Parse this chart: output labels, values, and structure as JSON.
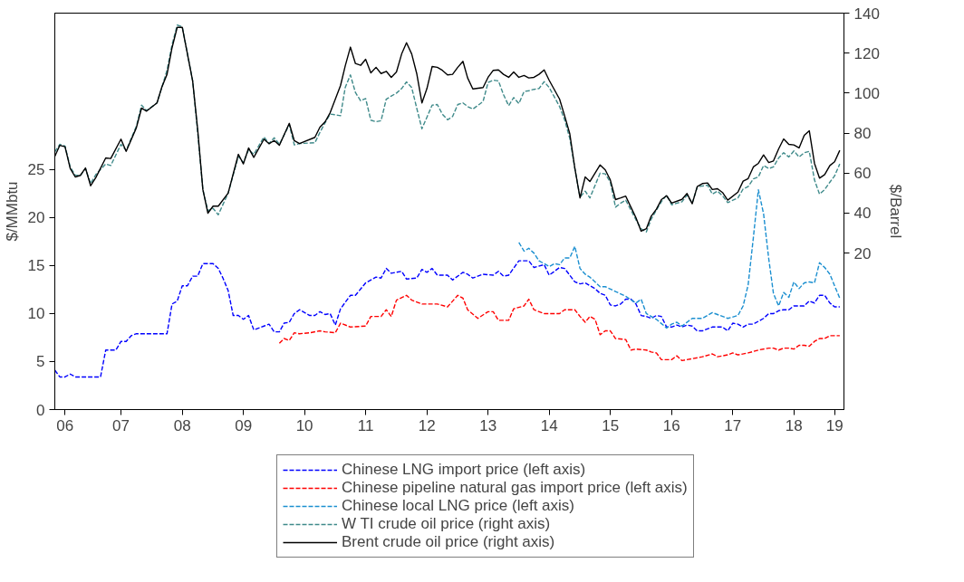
{
  "chart_data": {
    "type": "line",
    "ylabel": "$/MMbtu",
    "y2label": "$/Barrel",
    "xlim": [
      "2006-06-01",
      "2019-04-26"
    ],
    "ylim": [
      0,
      41.3
    ],
    "y2lim": [
      -58.2,
      140
    ],
    "xticks": [
      {
        "value": "2006-08",
        "label": "06"
      },
      {
        "value": "2007-07",
        "label": "07"
      },
      {
        "value": "2008-07",
        "label": "08"
      },
      {
        "value": "2009-07",
        "label": "09"
      },
      {
        "value": "2010-07",
        "label": "10"
      },
      {
        "value": "2011-07",
        "label": "11"
      },
      {
        "value": "2012-07",
        "label": "12"
      },
      {
        "value": "2013-07",
        "label": "13"
      },
      {
        "value": "2014-07",
        "label": "14"
      },
      {
        "value": "2015-07",
        "label": "15"
      },
      {
        "value": "2016-07",
        "label": "16"
      },
      {
        "value": "2017-07",
        "label": "17"
      },
      {
        "value": "2018-07",
        "label": "18"
      },
      {
        "value": "2019-03",
        "label": "19"
      }
    ],
    "yticks": [
      0,
      5,
      10,
      15,
      20,
      25
    ],
    "y2ticks": [
      20,
      40,
      60,
      80,
      100,
      120,
      140
    ],
    "grid": false,
    "legend": "bottom",
    "marker": "none",
    "series": [
      {
        "name": "Chinese LNG import price (left axis)",
        "color": "#0000ff",
        "line_style": "dashed",
        "axis": "y",
        "x": [
          "2006-06",
          "2006-07",
          "2006-08",
          "2006-09",
          "2006-10",
          "2007-03",
          "2007-04",
          "2007-06",
          "2007-07",
          "2007-08",
          "2007-09",
          "2007-10",
          "2008-04",
          "2008-05",
          "2008-06",
          "2008-07",
          "2008-08",
          "2008-09",
          "2008-10",
          "2008-11",
          "2009-01",
          "2009-02",
          "2009-03",
          "2009-04",
          "2009-05",
          "2009-06",
          "2009-07",
          "2009-08",
          "2009-09",
          "2009-11",
          "2009-12",
          "2010-01",
          "2010-02",
          "2010-03",
          "2010-04",
          "2010-05",
          "2010-06",
          "2010-08",
          "2010-09",
          "2010-10",
          "2010-11",
          "2010-12",
          "2011-01",
          "2011-02",
          "2011-04",
          "2011-05",
          "2011-07",
          "2011-09",
          "2011-10",
          "2011-11",
          "2011-12",
          "2012-02",
          "2012-03",
          "2012-05",
          "2012-06",
          "2012-07",
          "2012-08",
          "2012-09",
          "2012-11",
          "2012-12",
          "2013-02",
          "2013-03",
          "2013-04",
          "2013-06",
          "2013-08",
          "2013-09",
          "2013-10",
          "2013-11",
          "2014-01",
          "2014-03",
          "2014-04",
          "2014-06",
          "2014-07",
          "2014-09",
          "2014-10",
          "2014-11",
          "2014-12",
          "2015-01",
          "2015-02",
          "2015-03",
          "2015-04",
          "2015-05",
          "2015-06",
          "2015-07",
          "2015-08",
          "2015-09",
          "2015-10",
          "2015-11",
          "2015-12",
          "2016-01",
          "2016-02",
          "2016-03",
          "2016-04",
          "2016-05",
          "2016-06",
          "2016-07",
          "2016-08",
          "2016-09",
          "2016-10",
          "2016-11",
          "2016-12",
          "2017-01",
          "2017-03",
          "2017-05",
          "2017-06",
          "2017-07",
          "2017-08",
          "2017-09",
          "2017-10",
          "2017-11",
          "2018-01",
          "2018-02",
          "2018-03",
          "2018-04",
          "2018-05",
          "2018-06",
          "2018-07",
          "2018-09",
          "2018-10",
          "2018-11",
          "2018-12",
          "2019-01",
          "2019-02",
          "2019-03",
          "2019-04"
        ],
        "values": [
          4.1,
          3.4,
          3.4,
          3.7,
          3.4,
          3.4,
          6.2,
          6.2,
          7.1,
          7.1,
          7.7,
          7.9,
          7.9,
          11,
          11.3,
          12.9,
          12.9,
          13.9,
          13.9,
          15.2,
          15.2,
          14.7,
          13.7,
          12.4,
          9.8,
          9.8,
          9.4,
          9.8,
          8.3,
          8.7,
          8.9,
          8.1,
          8.1,
          9,
          9.1,
          10,
          10.4,
          9.8,
          9.8,
          10.2,
          9.9,
          10,
          8.8,
          10.5,
          11.9,
          11.9,
          13.2,
          13.8,
          13.7,
          14.7,
          14.2,
          14.4,
          13.6,
          13.7,
          14.6,
          14.3,
          14.7,
          14,
          14,
          13.5,
          14.3,
          14.1,
          13.7,
          14.1,
          14,
          14.4,
          13.9,
          14,
          15.5,
          15.5,
          14.8,
          15.1,
          14,
          14.8,
          14.7,
          14,
          13.3,
          13.1,
          13.2,
          12.9,
          12.6,
          12.1,
          11.9,
          10.9,
          10.8,
          11,
          11.5,
          11.5,
          11,
          9.8,
          9.7,
          9.5,
          9.8,
          9.7,
          8.6,
          8.6,
          8.8,
          8.6,
          8.8,
          8.7,
          8.2,
          8.2,
          8.6,
          8.6,
          8.2,
          9,
          8.9,
          8.6,
          8.9,
          8.9,
          9.5,
          10,
          10,
          10.3,
          10.4,
          10.4,
          10.8,
          10.8,
          11.3,
          11.1,
          11.9,
          11.9,
          11.1,
          10.7,
          10.7
        ]
      },
      {
        "name": "Chinese pipeline natural gas import price (left axis)",
        "color": "#ff0000",
        "line_style": "dashed",
        "axis": "y",
        "x": [
          "2010-02",
          "2010-03",
          "2010-04",
          "2010-05",
          "2010-06",
          "2010-08",
          "2010-10",
          "2010-11",
          "2011-01",
          "2011-02",
          "2011-04",
          "2011-07",
          "2011-08",
          "2011-10",
          "2011-11",
          "2011-12",
          "2012-01",
          "2012-03",
          "2012-04",
          "2012-06",
          "2012-08",
          "2012-09",
          "2012-11",
          "2013-01",
          "2013-02",
          "2013-03",
          "2013-05",
          "2013-07",
          "2013-08",
          "2013-09",
          "2013-11",
          "2013-12",
          "2014-02",
          "2014-03",
          "2014-04",
          "2014-06",
          "2014-09",
          "2014-10",
          "2014-12",
          "2015-01",
          "2015-02",
          "2015-03",
          "2015-04",
          "2015-05",
          "2015-06",
          "2015-07",
          "2015-08",
          "2015-10",
          "2015-11",
          "2015-12",
          "2016-02",
          "2016-03",
          "2016-04",
          "2016-05",
          "2016-07",
          "2016-08",
          "2016-09",
          "2016-11",
          "2017-01",
          "2017-03",
          "2017-04",
          "2017-06",
          "2017-07",
          "2017-08",
          "2017-10",
          "2017-12",
          "2018-02",
          "2018-03",
          "2018-04",
          "2018-05",
          "2018-06",
          "2018-07",
          "2018-08",
          "2018-09",
          "2018-10",
          "2018-11",
          "2018-12",
          "2019-01",
          "2019-02",
          "2019-04"
        ],
        "values": [
          6.9,
          7.4,
          7.2,
          8,
          7.9,
          8,
          8.2,
          8.1,
          8,
          9,
          8.6,
          8.7,
          9.7,
          9.7,
          10.4,
          9.7,
          11.4,
          11.9,
          11.4,
          11,
          11,
          11,
          10.7,
          11.9,
          11.6,
          10.4,
          9.5,
          10.2,
          10.2,
          9.3,
          9.3,
          10.5,
          10.8,
          11.5,
          10.4,
          10,
          10,
          10.4,
          10.4,
          9.7,
          9.1,
          9.7,
          9.4,
          7.8,
          8.2,
          8.2,
          7.4,
          7.3,
          6.2,
          6.3,
          6.2,
          6,
          5.9,
          5.2,
          5.2,
          5.6,
          5.1,
          5.3,
          5.5,
          5.8,
          5.5,
          5.7,
          5.9,
          5.7,
          5.9,
          6.2,
          6.4,
          6.4,
          6.2,
          6.4,
          6.4,
          6.3,
          6.7,
          6.7,
          6.6,
          7.1,
          7.4,
          7.4,
          7.7,
          7.7
        ]
      },
      {
        "name": "Chinese local LNG price (left axis)",
        "color": "#1b8fd0",
        "line_style": "dashed",
        "axis": "y",
        "x": [
          "2014-01",
          "2014-02",
          "2014-03",
          "2014-04",
          "2014-05",
          "2014-07",
          "2014-08",
          "2014-09",
          "2014-10",
          "2014-11",
          "2014-12",
          "2015-01",
          "2015-02",
          "2015-03",
          "2015-05",
          "2015-06",
          "2015-08",
          "2015-10",
          "2015-12",
          "2016-01",
          "2016-02",
          "2016-04",
          "2016-06",
          "2016-07",
          "2016-08",
          "2016-09",
          "2016-11",
          "2017-01",
          "2017-03",
          "2017-04",
          "2017-06",
          "2017-08",
          "2017-09",
          "2017-10",
          "2017-11",
          "2017-12",
          "2018-01",
          "2018-02",
          "2018-03",
          "2018-04",
          "2018-05",
          "2018-06",
          "2018-07",
          "2018-08",
          "2018-09",
          "2018-10",
          "2018-11",
          "2018-12",
          "2019-01",
          "2019-02",
          "2019-03",
          "2019-04"
        ],
        "values": [
          17.4,
          16.5,
          16.8,
          16.3,
          15.5,
          14.9,
          15.2,
          15.1,
          15.8,
          15.8,
          17,
          14.7,
          14.1,
          13.8,
          12.8,
          12.8,
          12.3,
          11.8,
          11.1,
          11.5,
          10,
          9.4,
          8.5,
          8.9,
          9.1,
          8.7,
          9.5,
          9.5,
          10.1,
          9.9,
          9.5,
          9.8,
          10.8,
          13,
          17.9,
          22.9,
          20.4,
          15.7,
          12.1,
          10.8,
          12.2,
          11.7,
          13.3,
          12.6,
          13.2,
          13.3,
          13.2,
          15.3,
          14.8,
          14.1,
          12.9,
          11.6
        ]
      },
      {
        "name": "W TI crude oil price (right axis)",
        "color": "#3f8a8a",
        "line_style": "dashed",
        "axis": "y2",
        "x": [
          "2006-06",
          "2006-07",
          "2006-08",
          "2006-09",
          "2006-10",
          "2006-11",
          "2006-12",
          "2007-01",
          "2007-02",
          "2007-04",
          "2007-05",
          "2007-07",
          "2007-08",
          "2007-10",
          "2007-11",
          "2007-12",
          "2008-02",
          "2008-03",
          "2008-04",
          "2008-05",
          "2008-06",
          "2008-07",
          "2008-09",
          "2008-10",
          "2008-11",
          "2008-12",
          "2009-01",
          "2009-02",
          "2009-04",
          "2009-06",
          "2009-07",
          "2009-08",
          "2009-09",
          "2009-11",
          "2009-12",
          "2010-01",
          "2010-02",
          "2010-04",
          "2010-05",
          "2010-06",
          "2010-09",
          "2010-10",
          "2010-11",
          "2010-12",
          "2011-01",
          "2011-02",
          "2011-03",
          "2011-04",
          "2011-05",
          "2011-06",
          "2011-07",
          "2011-08",
          "2011-09",
          "2011-10",
          "2011-11",
          "2011-12",
          "2012-01",
          "2012-02",
          "2012-03",
          "2012-04",
          "2012-05",
          "2012-06",
          "2012-07",
          "2012-08",
          "2012-09",
          "2012-10",
          "2012-11",
          "2012-12",
          "2013-01",
          "2013-02",
          "2013-03",
          "2013-04",
          "2013-06",
          "2013-07",
          "2013-08",
          "2013-09",
          "2013-10",
          "2013-11",
          "2013-12",
          "2014-01",
          "2014-02",
          "2014-03",
          "2014-04",
          "2014-05",
          "2014-06",
          "2014-07",
          "2014-09",
          "2014-10",
          "2014-11",
          "2014-12",
          "2015-01",
          "2015-02",
          "2015-03",
          "2015-05",
          "2015-06",
          "2015-07",
          "2015-08",
          "2015-09",
          "2015-10",
          "2015-11",
          "2015-12",
          "2016-01",
          "2016-02",
          "2016-03",
          "2016-04",
          "2016-05",
          "2016-06",
          "2016-07",
          "2016-09",
          "2016-10",
          "2016-11",
          "2016-12",
          "2017-01",
          "2017-02",
          "2017-03",
          "2017-04",
          "2017-05",
          "2017-06",
          "2017-08",
          "2017-09",
          "2017-10",
          "2017-11",
          "2017-12",
          "2018-01",
          "2018-02",
          "2018-03",
          "2018-04",
          "2018-05",
          "2018-06",
          "2018-07",
          "2018-08",
          "2018-09",
          "2018-10",
          "2018-11",
          "2018-12",
          "2019-01",
          "2019-02",
          "2019-03",
          "2019-04"
        ],
        "values": [
          70.6,
          74.4,
          73.5,
          63.1,
          59,
          58.9,
          62.3,
          54.8,
          59.3,
          64.6,
          63.8,
          74.4,
          71.4,
          83.4,
          94,
          91.3,
          95.1,
          102.8,
          111.4,
          124.2,
          134,
          133.2,
          106.1,
          80.4,
          51.8,
          41.2,
          42.4,
          39.2,
          50,
          68.4,
          65.3,
          71.7,
          69.4,
          78.1,
          74.8,
          77.7,
          74.4,
          84.2,
          74.1,
          74.8,
          75.2,
          80.4,
          85.2,
          89.5,
          89.2,
          88.7,
          102.8,
          109.1,
          100.3,
          96.2,
          97.3,
          86.5,
          85.7,
          86.2,
          97,
          98.5,
          100,
          102.3,
          105.6,
          102.8,
          92.5,
          82.2,
          88,
          94,
          94.3,
          89.5,
          86.7,
          88.3,
          94.3,
          95.1,
          93.3,
          92,
          95.8,
          105.3,
          106.5,
          106.1,
          99.3,
          93.7,
          97.8,
          94.8,
          100.8,
          101.2,
          101.9,
          102.3,
          105.7,
          102.8,
          93.3,
          86.7,
          77.4,
          62.3,
          48,
          51,
          47.6,
          60,
          59.6,
          55.5,
          43,
          45,
          46.5,
          41.5,
          36.7,
          32.2,
          30.6,
          37,
          41.5,
          45.7,
          49,
          44.2,
          45.7,
          49,
          45,
          53,
          53.6,
          54,
          49.5,
          51,
          48.7,
          45.3,
          47.6,
          52.1,
          53.3,
          57.1,
          58.1,
          63.8,
          62.3,
          63.1,
          67.6,
          70.2,
          68.1,
          71.1,
          68.1,
          70.2,
          70.9,
          56.6,
          49.5,
          51.8,
          55.5,
          58.6,
          64.6
        ]
      },
      {
        "name": "Brent crude oil price (right axis)",
        "color": "#000000",
        "line_style": "solid",
        "axis": "y2",
        "x": [
          "2006-06",
          "2006-07",
          "2006-08",
          "2006-09",
          "2006-10",
          "2006-11",
          "2006-12",
          "2007-01",
          "2007-02",
          "2007-04",
          "2007-05",
          "2007-07",
          "2007-08",
          "2007-10",
          "2007-11",
          "2007-12",
          "2008-02",
          "2008-03",
          "2008-04",
          "2008-05",
          "2008-06",
          "2008-07",
          "2008-09",
          "2008-10",
          "2008-11",
          "2008-12",
          "2009-01",
          "2009-02",
          "2009-04",
          "2009-06",
          "2009-07",
          "2009-08",
          "2009-09",
          "2009-11",
          "2009-12",
          "2010-01",
          "2010-02",
          "2010-04",
          "2010-05",
          "2010-06",
          "2010-09",
          "2010-10",
          "2010-11",
          "2010-12",
          "2011-01",
          "2011-02",
          "2011-03",
          "2011-04",
          "2011-05",
          "2011-06",
          "2011-07",
          "2011-08",
          "2011-09",
          "2011-10",
          "2011-11",
          "2011-12",
          "2012-01",
          "2012-02",
          "2012-03",
          "2012-04",
          "2012-05",
          "2012-06",
          "2012-07",
          "2012-08",
          "2012-09",
          "2012-10",
          "2012-11",
          "2012-12",
          "2013-01",
          "2013-02",
          "2013-03",
          "2013-04",
          "2013-06",
          "2013-07",
          "2013-08",
          "2013-09",
          "2013-10",
          "2013-11",
          "2013-12",
          "2014-01",
          "2014-02",
          "2014-03",
          "2014-04",
          "2014-05",
          "2014-06",
          "2014-07",
          "2014-09",
          "2014-10",
          "2014-11",
          "2014-12",
          "2015-01",
          "2015-02",
          "2015-03",
          "2015-05",
          "2015-06",
          "2015-07",
          "2015-08",
          "2015-09",
          "2015-10",
          "2015-11",
          "2015-12",
          "2016-01",
          "2016-02",
          "2016-03",
          "2016-04",
          "2016-05",
          "2016-06",
          "2016-07",
          "2016-09",
          "2016-10",
          "2016-11",
          "2016-12",
          "2017-01",
          "2017-02",
          "2017-03",
          "2017-04",
          "2017-05",
          "2017-06",
          "2017-08",
          "2017-09",
          "2017-10",
          "2017-11",
          "2017-12",
          "2018-01",
          "2018-02",
          "2018-03",
          "2018-04",
          "2018-05",
          "2018-06",
          "2018-07",
          "2018-08",
          "2018-09",
          "2018-10",
          "2018-11",
          "2018-12",
          "2019-01",
          "2019-02",
          "2019-03",
          "2019-04"
        ],
        "values": [
          68.4,
          73.9,
          73.2,
          62.3,
          58.1,
          58.9,
          62.6,
          53.7,
          57.8,
          67.6,
          67.3,
          77,
          70.9,
          82.7,
          92.5,
          91,
          95.1,
          103,
          109.4,
          122.7,
          132.9,
          132.9,
          106.1,
          81.9,
          51.8,
          40,
          43.5,
          43.5,
          50,
          69.4,
          64.6,
          72.6,
          67.9,
          77,
          74.7,
          76.3,
          73.9,
          84.9,
          76.2,
          74.8,
          77.9,
          83,
          85.7,
          90.2,
          97,
          103.8,
          113.6,
          123,
          114.8,
          113.9,
          116.9,
          110.1,
          112.9,
          109.8,
          110.9,
          107.9,
          110.6,
          119.6,
          125.2,
          119.6,
          109.8,
          95.1,
          102.3,
          113.3,
          112.9,
          111.4,
          109.1,
          109.4,
          112.9,
          115.9,
          107.6,
          102.1,
          102.8,
          107.9,
          111.4,
          111.6,
          109.4,
          107.9,
          110.6,
          107.9,
          108.8,
          107.6,
          107.9,
          109.4,
          111.6,
          106.4,
          97,
          88.7,
          79.7,
          62.6,
          47.6,
          58.1,
          55.8,
          64.1,
          61.6,
          56.6,
          46.8,
          47.6,
          48.5,
          43,
          37.7,
          31,
          32.2,
          38.5,
          42,
          46.8,
          48.7,
          45,
          46.9,
          49.8,
          44.7,
          53.3,
          54.8,
          55.1,
          51.8,
          52.2,
          50.3,
          46.5,
          50.5,
          56,
          57.3,
          63.1,
          64.9,
          69.1,
          65.3,
          66.1,
          72.1,
          77.1,
          74.4,
          74.1,
          72.6,
          78.9,
          81.2,
          64.9,
          57.5,
          59.3,
          63.8,
          65.7,
          71.4
        ]
      }
    ]
  }
}
